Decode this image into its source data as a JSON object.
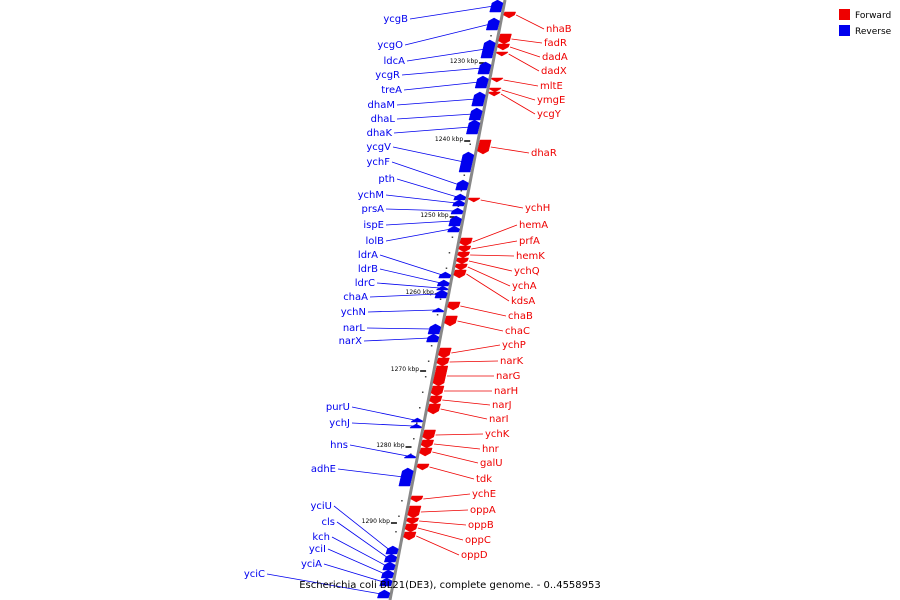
{
  "caption": "Escherichia coli BL21(DE3), complete genome. - 0..4558953",
  "colors": {
    "forward": "#ee0000",
    "reverse": "#0000ee",
    "backbone": "#888888"
  },
  "legend": [
    {
      "label": "Forward",
      "color": "#ee0000"
    },
    {
      "label": "Reverse",
      "color": "#0000ee"
    }
  ],
  "ticks": [
    "1230 kbp",
    "1240 kbp",
    "1250 kbp",
    "1260 kbp",
    "1270 kbp",
    "1280 kbp",
    "1290 kbp"
  ],
  "reverse_genes": [
    "ycgB",
    "ycgO",
    "ldcA",
    "ycgR",
    "treA",
    "dhaM",
    "dhaL",
    "dhaK",
    "ycgV",
    "ychF",
    "pth",
    "ychM",
    "prsA",
    "ispE",
    "lolB",
    "ldrA",
    "ldrB",
    "ldrC",
    "chaA",
    "ychN",
    "narL",
    "narX",
    "purU",
    "ychJ",
    "hns",
    "adhE",
    "yciU",
    "cls",
    "kch",
    "yciI",
    "yciA",
    "yciC"
  ],
  "forward_genes": [
    "nhaB",
    "fadR",
    "dadA",
    "dadX",
    "mltE",
    "ymgE",
    "ycgY",
    "dhaR",
    "ychH",
    "hemA",
    "prfA",
    "hemK",
    "ychQ",
    "ychA",
    "kdsA",
    "chaB",
    "chaC",
    "ychP",
    "narK",
    "narG",
    "narH",
    "narJ",
    "narI",
    "ychK",
    "hnr",
    "galU",
    "tdk",
    "ychE",
    "oppA",
    "oppB",
    "oppC",
    "oppD"
  ]
}
